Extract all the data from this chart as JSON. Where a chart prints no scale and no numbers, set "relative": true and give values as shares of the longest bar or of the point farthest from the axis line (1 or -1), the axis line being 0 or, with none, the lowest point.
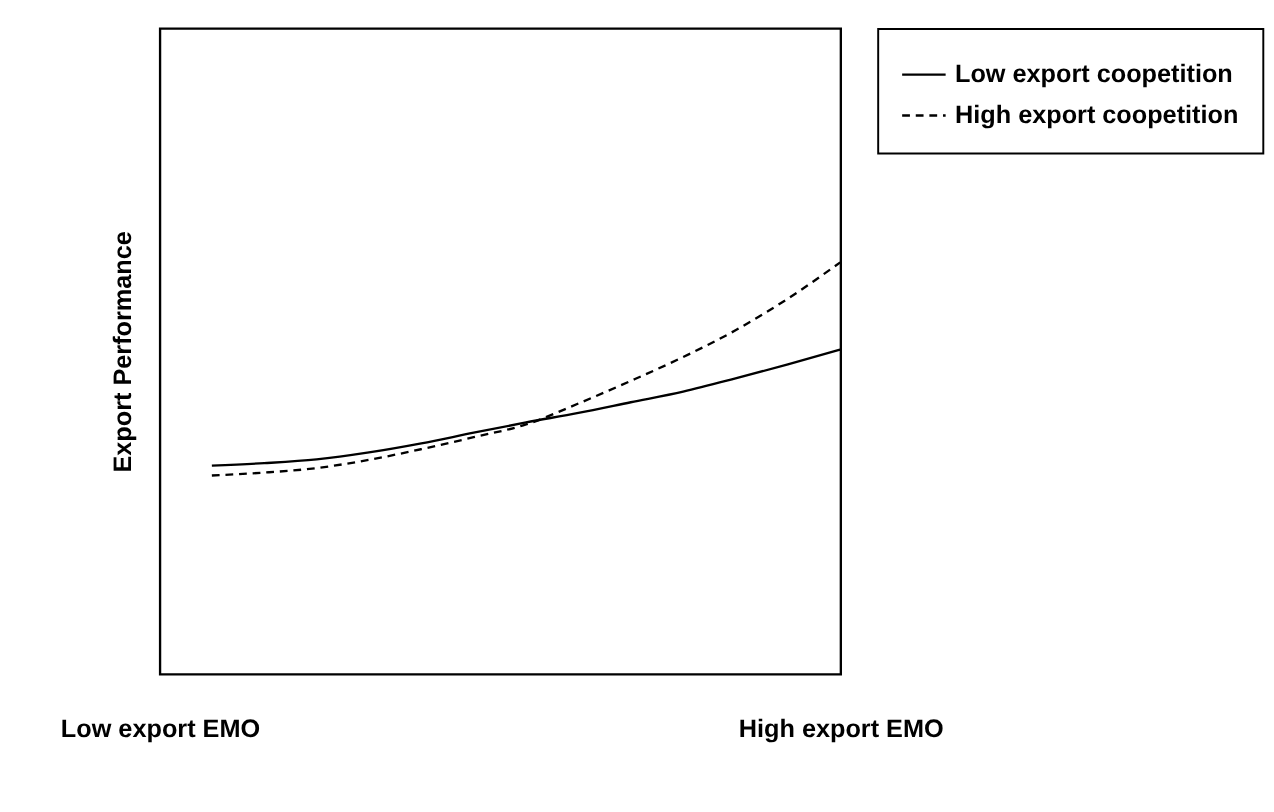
{
  "chart_data": {
    "type": "line",
    "relative": true,
    "ylabel": "Export Performance",
    "categories": [
      "Low export EMO",
      null,
      null,
      null,
      null,
      null,
      null,
      null,
      null,
      null,
      null,
      null,
      null,
      "High export EMO"
    ],
    "legend": "right",
    "grid": false,
    "marker": "none",
    "series": [
      {
        "name": "Low export coopetition",
        "color": "#000000",
        "line_style": "solid",
        "values": [
          null,
          0.506,
          0.512,
          0.521,
          0.538,
          0.56,
          0.586,
          0.611,
          0.634,
          0.66,
          0.686,
          0.718,
          0.752,
          0.788
        ]
      },
      {
        "name": "High export coopetition",
        "color": "#000000",
        "line_style": "dashed",
        "values": [
          null,
          0.482,
          0.489,
          0.5,
          0.52,
          0.546,
          0.575,
          0.606,
          0.657,
          0.712,
          0.77,
          0.835,
          0.912,
          1.0
        ]
      }
    ]
  }
}
